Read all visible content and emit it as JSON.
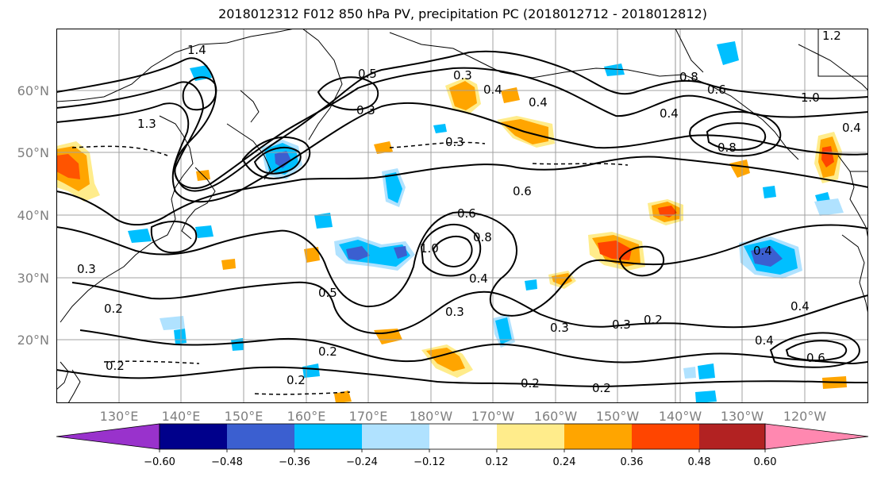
{
  "title": "2018012312 F012 850 hPa PV, precipitation PC (2018012712 - 2018012812)",
  "map": {
    "lat_labels": [
      "60°N",
      "50°N",
      "40°N",
      "30°N",
      "20°N"
    ],
    "lon_labels": [
      "130°E",
      "140°E",
      "150°E",
      "160°E",
      "170°E",
      "180°W",
      "170°W",
      "160°W",
      "150°W",
      "140°W",
      "130°W",
      "120°W"
    ],
    "contour_labels": [
      "1.4",
      "0.5",
      "0.3",
      "1.3",
      "0.3",
      "0.2",
      "0.2",
      "0.3",
      "0.4",
      "0.3",
      "0.4",
      "0.6",
      "0.6",
      "1.0",
      "0.8",
      "0.5",
      "0.4",
      "0.3",
      "0.2",
      "0.2",
      "0.3",
      "0.2",
      "0.3",
      "0.2",
      "0.4",
      "0.8",
      "0.6",
      "0.8",
      "1.0",
      "0.4",
      "0.4",
      "0.4",
      "0.6",
      "0.4",
      "1.2",
      "0.2"
    ],
    "colors": {
      "coast": "#000000",
      "grid": "#a0a0a0",
      "contour": "#000000"
    }
  },
  "colorbar": {
    "ticks": [
      "−0.60",
      "−0.48",
      "−0.36",
      "−0.24",
      "−0.12",
      "0.12",
      "0.24",
      "0.36",
      "0.48",
      "0.60"
    ],
    "colors": [
      "#9932cc",
      "#00008b",
      "#3b5fd0",
      "#00bfff",
      "#b0e2ff",
      "#ffffff",
      "#ffec8b",
      "#ffa500",
      "#ff4500",
      "#b22222",
      "#ff88b0"
    ]
  }
}
